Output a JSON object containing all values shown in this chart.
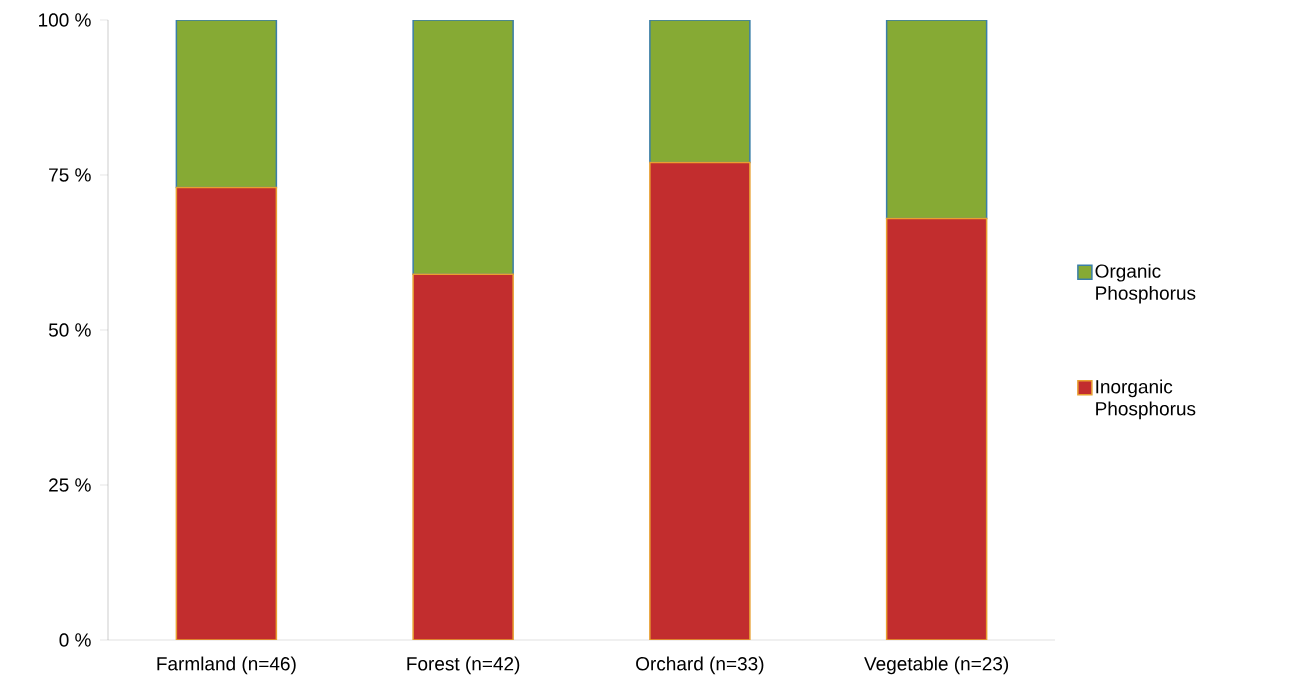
{
  "chart_data": {
    "type": "bar",
    "stacked": true,
    "categories": [
      "Farmland (n=46)",
      "Forest (n=42)",
      "Orchard (n=33)",
      "Vegetable (n=23)"
    ],
    "series": [
      {
        "name": "Inorganic Phosphorus",
        "color": "#c22d2e",
        "values": [
          73,
          59,
          77,
          68
        ]
      },
      {
        "name": "Organic Phosphorus",
        "color": "#86aa34",
        "values": [
          27,
          41,
          23,
          32
        ]
      }
    ],
    "ylim": [
      0,
      100
    ],
    "yticks": [
      {
        "value": 0,
        "label": "0 %"
      },
      {
        "value": 25,
        "label": "25 %"
      },
      {
        "value": 50,
        "label": "50 %"
      },
      {
        "value": 75,
        "label": "75 %"
      },
      {
        "value": 100,
        "label": "100 %"
      }
    ],
    "legend": "right"
  }
}
